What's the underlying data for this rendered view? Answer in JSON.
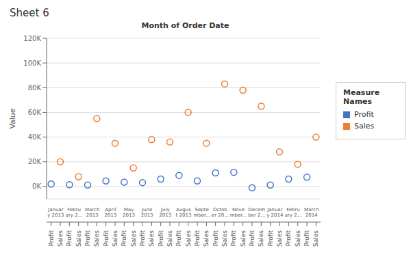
{
  "chart_data": {
    "type": "scatter",
    "title": "Month of Order Date",
    "y_label": "Value",
    "annotations": [
      "Sheet 6",
      "Measure Names"
    ],
    "categories": [
      "Januar\ny 2013",
      "Febru\nary 2...",
      "March\n2013",
      "April\n2013",
      "May\n2013",
      "June\n2013",
      "July\n2013",
      "Augus\nt 2013",
      "Septe\nmber...",
      "Octob\ner 20...",
      "Nove\nmber...",
      "Decem\nber 2...",
      "Januar\ny 2014",
      "Febru\nary 2...",
      "March\n2014"
    ],
    "series": [
      {
        "name": "Profit",
        "color": "#4472c4",
        "values": [
          2000,
          1500,
          1200,
          4500,
          3500,
          3200,
          6000,
          9000,
          4500,
          11000,
          11500,
          -1000,
          1200,
          6000,
          7500
        ]
      },
      {
        "name": "Sales",
        "color": "#ed7d31",
        "values": [
          20000,
          8000,
          55000,
          35000,
          15000,
          38000,
          36000,
          60000,
          35000,
          83000,
          78000,
          65000,
          28000,
          18000,
          40000
        ]
      }
    ],
    "ylim": [
      -10000,
      120000
    ],
    "yticks": [
      {
        "value": 0,
        "label": "0K"
      },
      {
        "value": 20000,
        "label": "20K"
      },
      {
        "value": 40000,
        "label": "40K"
      },
      {
        "value": 60000,
        "label": "60K"
      },
      {
        "value": 80000,
        "label": "80K"
      },
      {
        "value": 100000,
        "label": "100K"
      },
      {
        "value": 120000,
        "label": "120K"
      }
    ],
    "marker": "circle",
    "grid": true,
    "legend": "right"
  }
}
